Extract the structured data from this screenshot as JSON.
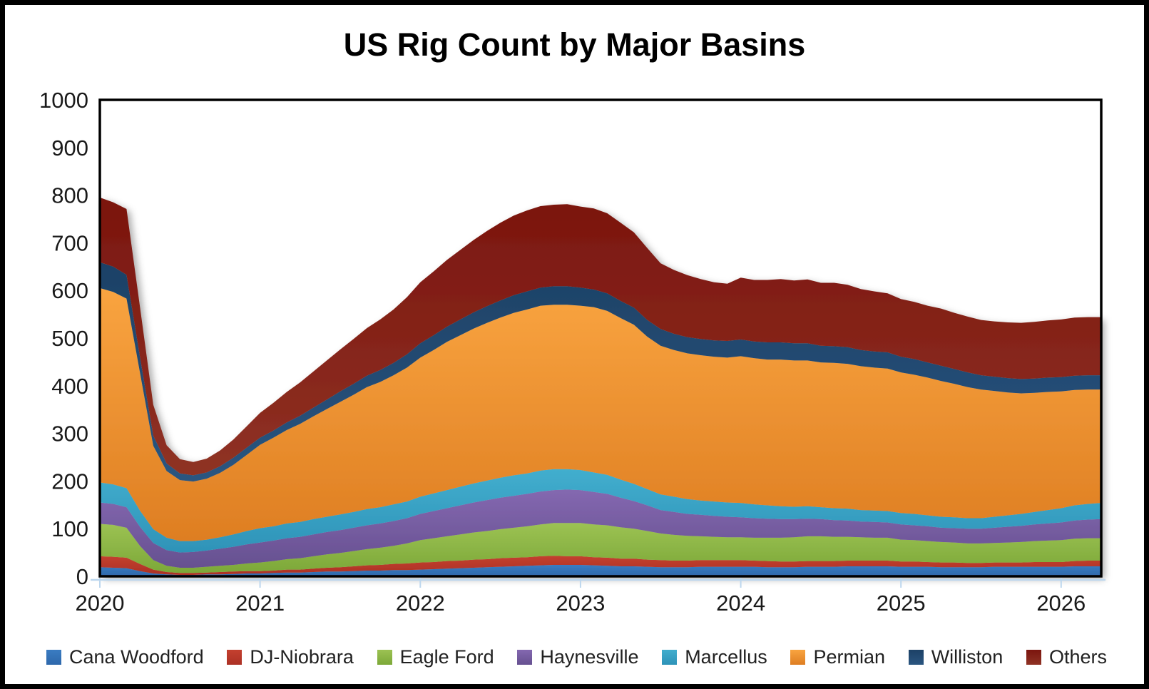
{
  "title": "US Rig Count by Major Basins",
  "chart_data": {
    "type": "area",
    "stacked": true,
    "title": "US Rig Count by Major Basins",
    "xlabel": "",
    "ylabel": "",
    "grid": false,
    "legend_position": "bottom",
    "ylim": [
      0,
      1000
    ],
    "y_ticks": [
      0,
      100,
      200,
      300,
      400,
      500,
      600,
      700,
      800,
      900,
      1000
    ],
    "x_tick_labels": [
      "2020",
      "2021",
      "2022",
      "2023",
      "2024",
      "2025",
      "2026"
    ],
    "x_range_years": [
      2020.0,
      2026.25
    ],
    "months": [
      "2020-01",
      "2020-02",
      "2020-03",
      "2020-04",
      "2020-05",
      "2020-06",
      "2020-07",
      "2020-08",
      "2020-09",
      "2020-10",
      "2020-11",
      "2020-12",
      "2021-01",
      "2021-02",
      "2021-03",
      "2021-04",
      "2021-05",
      "2021-06",
      "2021-07",
      "2021-08",
      "2021-09",
      "2021-10",
      "2021-11",
      "2021-12",
      "2022-01",
      "2022-02",
      "2022-03",
      "2022-04",
      "2022-05",
      "2022-06",
      "2022-07",
      "2022-08",
      "2022-09",
      "2022-10",
      "2022-11",
      "2022-12",
      "2023-01",
      "2023-02",
      "2023-03",
      "2023-04",
      "2023-05",
      "2023-06",
      "2023-07",
      "2023-08",
      "2023-09",
      "2023-10",
      "2023-11",
      "2023-12",
      "2024-01",
      "2024-02",
      "2024-03",
      "2024-04",
      "2024-05",
      "2024-06",
      "2024-07",
      "2024-08",
      "2024-09",
      "2024-10",
      "2024-11",
      "2024-12",
      "2025-01",
      "2025-02",
      "2025-03",
      "2025-04",
      "2025-05",
      "2025-06",
      "2025-07",
      "2025-08",
      "2025-09",
      "2025-10",
      "2025-11",
      "2025-12",
      "2026-01",
      "2026-02",
      "2026-03",
      "2026-04"
    ],
    "series": [
      {
        "name": "Cana Woodford",
        "color_top": "#3A7CC2",
        "color_bottom": "#2E68AB",
        "values": [
          19,
          18,
          17,
          11,
          6,
          4,
          3,
          3,
          4,
          4,
          5,
          6,
          6,
          7,
          8,
          8,
          9,
          10,
          10,
          11,
          12,
          12,
          13,
          13,
          14,
          15,
          16,
          17,
          18,
          19,
          20,
          21,
          22,
          23,
          24,
          24,
          24,
          23,
          22,
          21,
          21,
          20,
          19,
          19,
          19,
          20,
          20,
          20,
          20,
          20,
          19,
          19,
          19,
          20,
          20,
          20,
          21,
          21,
          21,
          21,
          20,
          20,
          20,
          19,
          19,
          19,
          19,
          20,
          20,
          20,
          20,
          20,
          20,
          21,
          21,
          21
        ]
      },
      {
        "name": "DJ-Niobrara",
        "color_top": "#C4402F",
        "color_bottom": "#AC3125",
        "values": [
          23,
          23,
          22,
          15,
          8,
          5,
          4,
          4,
          4,
          5,
          5,
          5,
          5,
          5,
          6,
          6,
          7,
          8,
          9,
          10,
          11,
          12,
          13,
          14,
          15,
          15,
          16,
          16,
          17,
          17,
          18,
          18,
          18,
          19,
          19,
          18,
          18,
          17,
          17,
          16,
          16,
          15,
          15,
          14,
          14,
          14,
          14,
          14,
          14,
          13,
          13,
          12,
          12,
          12,
          12,
          12,
          12,
          12,
          12,
          12,
          11,
          11,
          10,
          10,
          10,
          9,
          9,
          9,
          9,
          9,
          10,
          10,
          10,
          11,
          12,
          12
        ]
      },
      {
        "name": "Eagle Ford",
        "color_top": "#9CC253",
        "color_bottom": "#7CA838",
        "values": [
          68,
          67,
          63,
          38,
          20,
          13,
          11,
          11,
          12,
          13,
          14,
          16,
          18,
          20,
          22,
          24,
          26,
          28,
          30,
          32,
          34,
          36,
          38,
          42,
          47,
          50,
          52,
          55,
          57,
          59,
          61,
          63,
          65,
          67,
          69,
          70,
          70,
          69,
          68,
          66,
          63,
          60,
          56,
          54,
          52,
          50,
          49,
          48,
          48,
          48,
          49,
          50,
          51,
          52,
          52,
          51,
          50,
          49,
          48,
          48,
          46,
          45,
          44,
          43,
          42,
          41,
          41,
          41,
          42,
          43,
          44,
          45,
          46,
          47,
          47,
          47
        ]
      },
      {
        "name": "Haynesville",
        "color_top": "#8468B0",
        "color_bottom": "#665090",
        "values": [
          45,
          44,
          43,
          40,
          36,
          33,
          32,
          33,
          34,
          36,
          38,
          40,
          42,
          43,
          44,
          45,
          46,
          47,
          48,
          49,
          50,
          51,
          52,
          53,
          55,
          57,
          59,
          61,
          63,
          65,
          66,
          67,
          68,
          69,
          69,
          70,
          69,
          68,
          66,
          62,
          58,
          54,
          49,
          48,
          46,
          45,
          44,
          43,
          42,
          41,
          40,
          39,
          38,
          37,
          36,
          35,
          34,
          33,
          33,
          32,
          32,
          31,
          31,
          30,
          30,
          31,
          31,
          32,
          33,
          34,
          35,
          36,
          37,
          38,
          39,
          40
        ]
      },
      {
        "name": "Marcellus",
        "color_top": "#42AECE",
        "color_bottom": "#2E93B8",
        "values": [
          42,
          41,
          40,
          34,
          29,
          26,
          24,
          23,
          23,
          24,
          26,
          28,
          30,
          30,
          31,
          31,
          32,
          32,
          33,
          33,
          34,
          34,
          35,
          35,
          36,
          37,
          38,
          39,
          40,
          41,
          42,
          43,
          43,
          44,
          44,
          43,
          42,
          41,
          40,
          38,
          36,
          34,
          33,
          32,
          31,
          30,
          30,
          30,
          30,
          29,
          28,
          27,
          26,
          26,
          25,
          25,
          25,
          24,
          24,
          24,
          24,
          24,
          23,
          23,
          23,
          22,
          22,
          23,
          24,
          25,
          26,
          28,
          30,
          32,
          33,
          34
        ]
      },
      {
        "name": "Permian",
        "color_top": "#F9A440",
        "color_bottom": "#DE7E22",
        "values": [
          408,
          404,
          398,
          290,
          175,
          140,
          128,
          125,
          128,
          135,
          146,
          160,
          175,
          186,
          196,
          206,
          216,
          226,
          236,
          246,
          256,
          263,
          271,
          281,
          292,
          301,
          311,
          318,
          325,
          331,
          336,
          341,
          344,
          346,
          345,
          345,
          345,
          347,
          344,
          339,
          334,
          320,
          312,
          308,
          306,
          305,
          304,
          304,
          308,
          307,
          306,
          308,
          307,
          306,
          304,
          305,
          304,
          302,
          300,
          299,
          295,
          292,
          289,
          285,
          280,
          275,
          270,
          264,
          258,
          253,
          250,
          248,
          245,
          242,
          240,
          238
        ]
      },
      {
        "name": "Williston",
        "color_top": "#1D4166",
        "color_bottom": "#2A5580",
        "values": [
          54,
          53,
          50,
          33,
          21,
          16,
          14,
          13,
          13,
          14,
          15,
          15,
          15,
          15,
          16,
          17,
          18,
          20,
          22,
          23,
          24,
          25,
          26,
          28,
          30,
          31,
          32,
          33,
          34,
          35,
          36,
          37,
          38,
          38,
          39,
          39,
          38,
          37,
          37,
          36,
          36,
          35,
          35,
          34,
          34,
          34,
          34,
          35,
          35,
          35,
          36,
          36,
          36,
          36,
          35,
          35,
          35,
          34,
          34,
          34,
          33,
          33,
          32,
          32,
          31,
          31,
          30,
          30,
          30,
          30,
          30,
          30,
          30,
          30,
          30,
          30
        ]
      },
      {
        "name": "Others",
        "color_top": "#7B150E",
        "color_bottom": "#8F3224",
        "values": [
          136,
          135,
          138,
          105,
          65,
          38,
          30,
          28,
          29,
          33,
          38,
          45,
          52,
          58,
          64,
          70,
          76,
          82,
          88,
          94,
          100,
          106,
          112,
          120,
          128,
          134,
          140,
          146,
          152,
          158,
          163,
          167,
          170,
          171,
          171,
          172,
          170,
          170,
          168,
          164,
          158,
          151,
          138,
          134,
          130,
          126,
          122,
          120,
          130,
          129,
          131,
          133,
          132,
          134,
          132,
          133,
          131,
          128,
          126,
          124,
          121,
          120,
          119,
          120,
          118,
          117,
          116,
          116,
          117,
          118,
          119,
          120,
          121,
          122,
          122,
          122
        ]
      }
    ]
  }
}
